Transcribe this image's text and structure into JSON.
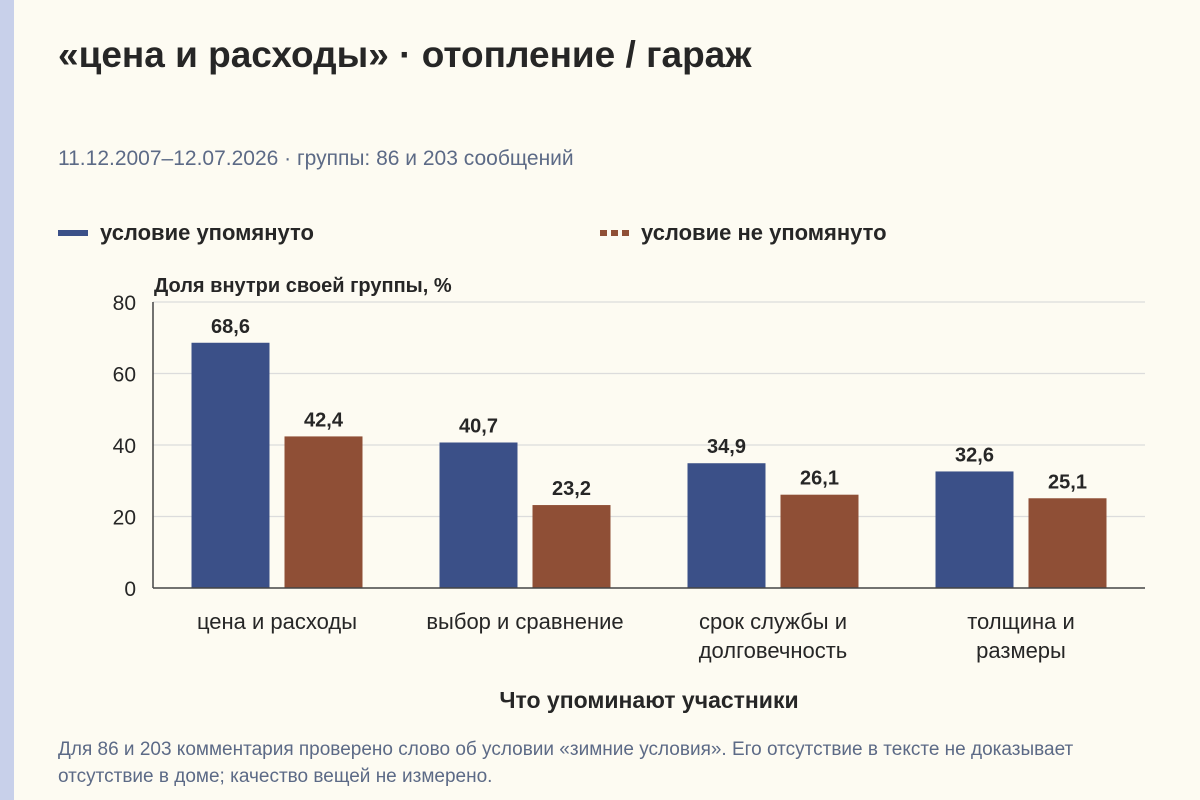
{
  "header": {
    "title": "«цена и расходы» · отопление / гараж",
    "subtitle": "11.12.2007–12.07.2026 · группы: 86 и 203 сообщений"
  },
  "legend": {
    "mentioned": "условие упомянуто",
    "not_mentioned": "условие не упомянуто"
  },
  "colors": {
    "mentioned": "#3b5088",
    "not_mentioned": "#8f4f36",
    "background": "#fdfbf2",
    "gridline": "#dcdcdc",
    "muted_text": "#5c6a86"
  },
  "chart_data": {
    "type": "bar",
    "ylabel": "Доля внутри своей группы, %",
    "xlabel": "Что упоминают участники",
    "ylim": [
      0,
      80
    ],
    "yticks": [
      "0",
      "20",
      "40",
      "60",
      "80"
    ],
    "grid": true,
    "legend_position": "top",
    "categories": [
      [
        "цена и расходы"
      ],
      [
        "выбор и сравнение"
      ],
      [
        "срок службы и",
        "долговечность"
      ],
      [
        "толщина и",
        "размеры"
      ]
    ],
    "series": [
      {
        "name": "условие упомянуто",
        "values": [
          68.6,
          40.7,
          34.9,
          32.6
        ],
        "labels": [
          "68,6",
          "40,7",
          "34,9",
          "32,6"
        ]
      },
      {
        "name": "условие не упомянуто",
        "values": [
          42.4,
          23.2,
          26.1,
          25.1
        ],
        "labels": [
          "42,4",
          "23,2",
          "26,1",
          "25,1"
        ]
      }
    ]
  },
  "footnote": "Для 86 и 203 комментария проверено слово об условии «зимние условия». Его отсутствие в тексте не доказывает отсутствие в доме; качество вещей не измерено."
}
